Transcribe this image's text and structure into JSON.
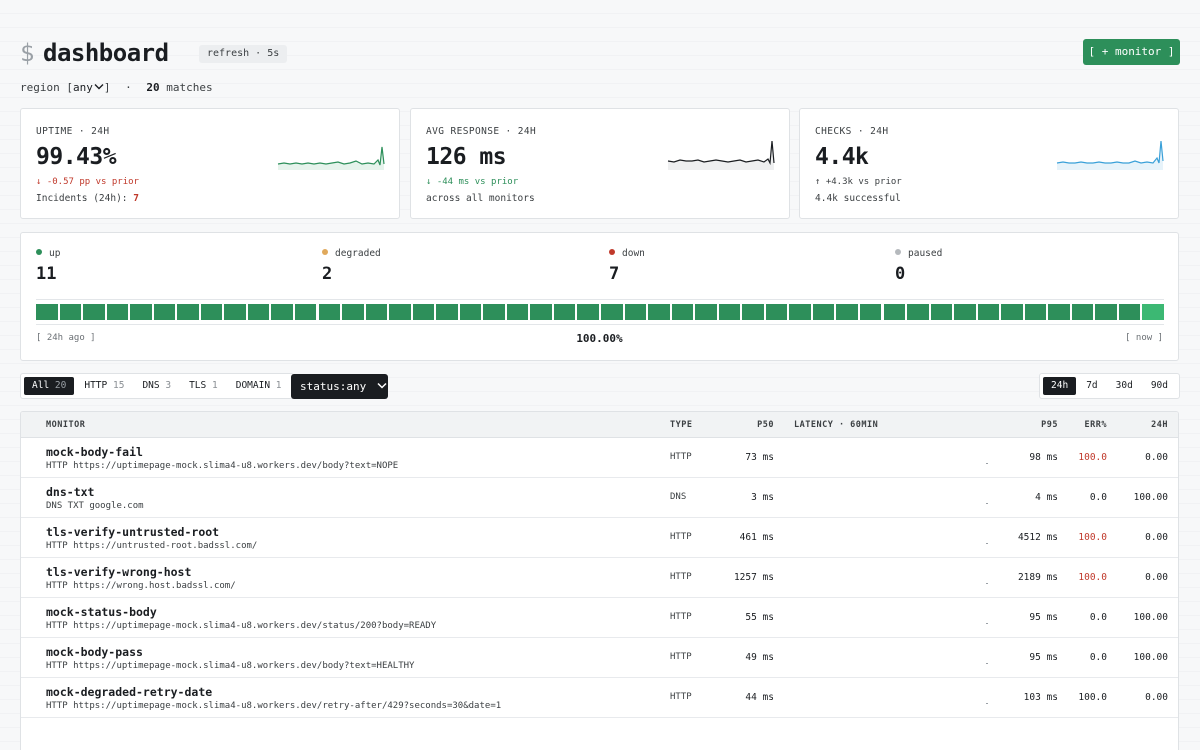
{
  "header": {
    "prompt": "$",
    "title": "dashboard",
    "refresh": "refresh · 5s",
    "monitor_button": "[ + monitor ]"
  },
  "filter": {
    "region_label": "region [",
    "region_value": "any",
    "region_close": "]",
    "separator": "·",
    "match_count": "20",
    "match_label": "matches"
  },
  "cards": [
    {
      "label": "UPTIME · 24H",
      "value": "99.43%",
      "delta": "↓ -0.57 pp vs prior",
      "sub_label": "Incidents (24h): ",
      "sub_value": "7",
      "spark_color": "#2d8f5a",
      "spark_fill": "#e6f3ec"
    },
    {
      "label": "AVG RESPONSE · 24H",
      "value": "126 ms",
      "delta": "↓ -44 ms vs prior",
      "sub_label": "across all monitors",
      "sub_value": "",
      "spark_color": "#1a1d21",
      "spark_fill": "#eeeff0"
    },
    {
      "label": "CHECKS · 24H",
      "value": "4.4k",
      "delta": "↑ +4.3k vs prior",
      "sub_label": "4.4k successful",
      "sub_value": "",
      "spark_color": "#3aa0d8",
      "spark_fill": "#e7f3fa"
    }
  ],
  "status_counts": [
    {
      "label": "up",
      "count": "11",
      "color": "#2d8f5a"
    },
    {
      "label": "degraded",
      "count": "2",
      "color": "#e0a95c"
    },
    {
      "label": "down",
      "count": "7",
      "color": "#c0392b"
    },
    {
      "label": "paused",
      "count": "0",
      "color": "#b5b9bd"
    }
  ],
  "status_strip": {
    "start_label": "[ 24h ago ]",
    "uptime": "100.00%",
    "end_label": "[ now ]",
    "bar_count": 48,
    "bar_color": "#2d8f5a",
    "last_bar_color": "#3cb873"
  },
  "type_tabs": [
    {
      "label": "All",
      "count": "20",
      "active": true
    },
    {
      "label": "HTTP",
      "count": "15",
      "active": false
    },
    {
      "label": "DNS",
      "count": "3",
      "active": false
    },
    {
      "label": "TLS",
      "count": "1",
      "active": false
    },
    {
      "label": "DOMAIN",
      "count": "1",
      "active": false
    }
  ],
  "status_dropdown": "status:any",
  "range_tabs": [
    {
      "label": "24h",
      "active": true
    },
    {
      "label": "7d",
      "active": false
    },
    {
      "label": "30d",
      "active": false
    },
    {
      "label": "90d",
      "active": false
    }
  ],
  "table": {
    "columns": [
      "MONITOR",
      "TYPE",
      "P50",
      "LATENCY · 60MIN",
      "P95",
      "ERR%",
      "24H"
    ],
    "rows": [
      {
        "name": "mock-body-fail",
        "url": "HTTP https://uptimepage-mock.slima4-u8.workers.dev/body?text=NOPE",
        "type": "HTTP",
        "p50": "73 ms",
        "p95": "98 ms",
        "err": "100.0",
        "err_bad": true,
        "uptime": "0.00"
      },
      {
        "name": "dns-txt",
        "url": "DNS TXT google.com",
        "type": "DNS",
        "p50": "3 ms",
        "p95": "4 ms",
        "err": "0.0",
        "err_bad": false,
        "uptime": "100.00"
      },
      {
        "name": "tls-verify-untrusted-root",
        "url": "HTTP https://untrusted-root.badssl.com/",
        "type": "HTTP",
        "p50": "461 ms",
        "p95": "4512 ms",
        "err": "100.0",
        "err_bad": true,
        "uptime": "0.00"
      },
      {
        "name": "tls-verify-wrong-host",
        "url": "HTTP https://wrong.host.badssl.com/",
        "type": "HTTP",
        "p50": "1257 ms",
        "p95": "2189 ms",
        "err": "100.0",
        "err_bad": true,
        "uptime": "0.00"
      },
      {
        "name": "mock-status-body",
        "url": "HTTP https://uptimepage-mock.slima4-u8.workers.dev/status/200?body=READY",
        "type": "HTTP",
        "p50": "55 ms",
        "p95": "95 ms",
        "err": "0.0",
        "err_bad": false,
        "uptime": "100.00"
      },
      {
        "name": "mock-body-pass",
        "url": "HTTP https://uptimepage-mock.slima4-u8.workers.dev/body?text=HEALTHY",
        "type": "HTTP",
        "p50": "49 ms",
        "p95": "95 ms",
        "err": "0.0",
        "err_bad": false,
        "uptime": "100.00"
      },
      {
        "name": "mock-degraded-retry-date",
        "url": "HTTP https://uptimepage-mock.slima4-u8.workers.dev/retry-after/429?seconds=30&date=1",
        "type": "HTTP",
        "p50": "44 ms",
        "p95": "103 ms",
        "err": "100.0",
        "err_bad": false,
        "uptime": "0.00"
      }
    ]
  }
}
